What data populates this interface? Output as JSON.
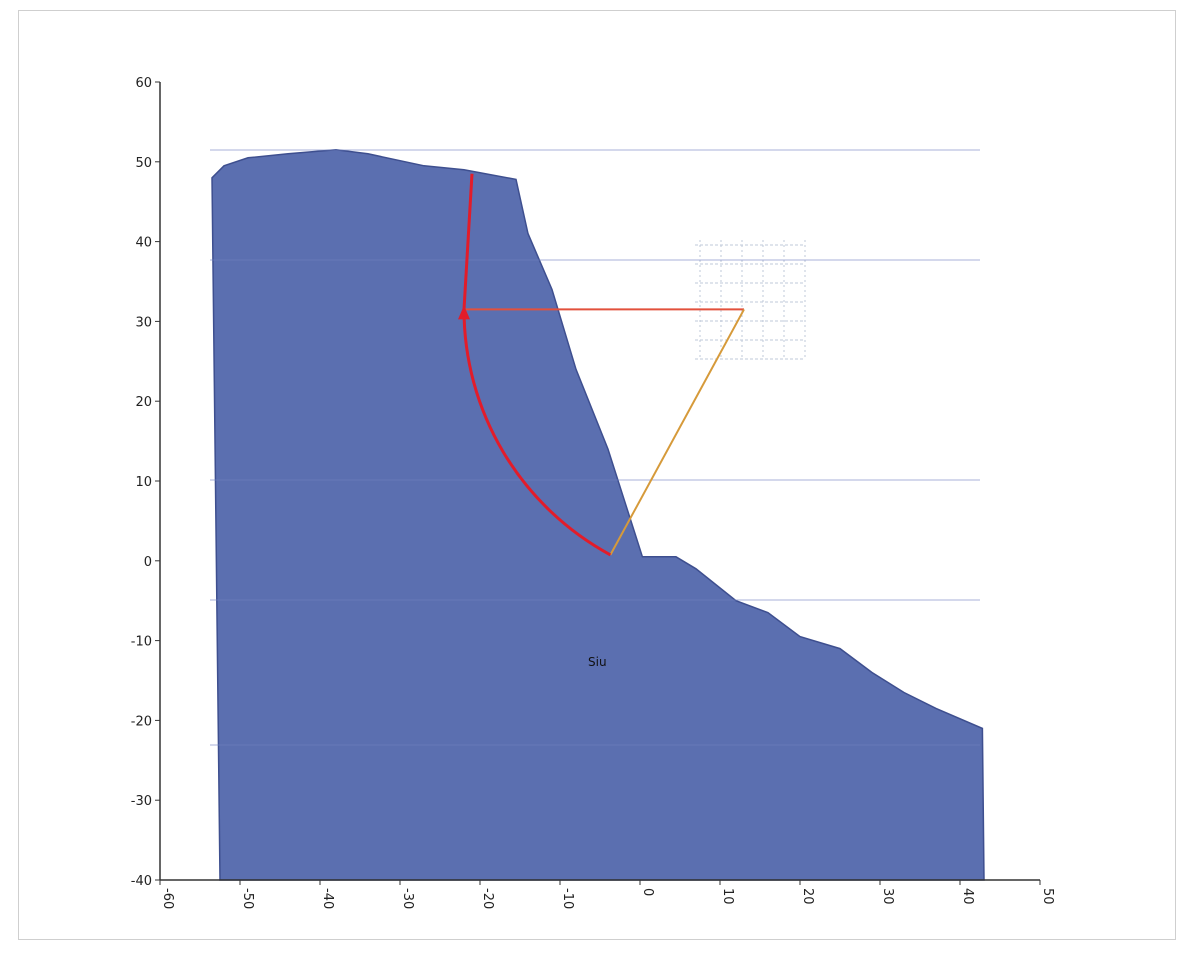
{
  "chart_data": {
    "type": "area",
    "xlim": [
      -60,
      50
    ],
    "ylim": [
      -40,
      60
    ],
    "x_ticks": [
      "-60",
      "-50",
      "-40",
      "-30",
      "-20",
      "-10",
      "0",
      "10",
      "20",
      "30",
      "40",
      "50"
    ],
    "y_ticks": [
      "60",
      "50",
      "40",
      "30",
      "20",
      "10",
      "0",
      "-10",
      "-20",
      "-30",
      "-40"
    ],
    "grid": false,
    "slope_profile": {
      "x": [
        -53.5,
        -52,
        -49,
        -44,
        -38,
        -34,
        -27,
        -22,
        -15.5,
        -14,
        -11,
        -8,
        -4,
        0.3,
        4.5,
        7,
        12,
        16,
        20,
        25,
        29,
        33,
        37,
        42.8,
        43,
        -52.5
      ],
      "y": [
        48,
        49.5,
        50.5,
        51,
        51.5,
        51,
        49.5,
        49,
        47.8,
        41,
        34,
        24,
        14,
        0.5,
        0.5,
        -1,
        -5,
        -6.5,
        -9.5,
        -11,
        -14,
        -16.5,
        -18.5,
        -21,
        -40,
        -40
      ]
    },
    "region_label": "Siu",
    "failure_circle": {
      "center": [
        13,
        31.5
      ],
      "radius": 35,
      "arc_start_angle_deg": 180,
      "arc_end_angle_deg": 241.5,
      "top_point": [
        -21,
        48.5
      ]
    },
    "colors": {
      "soil": "#5b6fb0",
      "soil_edge": "#3e4f8f",
      "slip_surface": "#e21c2a",
      "radius_line": "#e2503c",
      "chord_line": "#d69a3a",
      "axis": "#333333",
      "mesh": "#bfc8d8"
    }
  }
}
